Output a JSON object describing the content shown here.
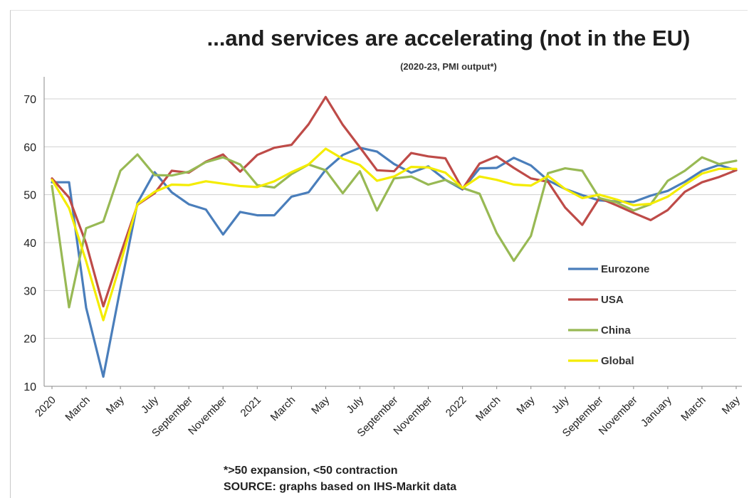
{
  "header": {
    "title": "...and services are accelerating (not in the EU)",
    "subtitle": "(2020-23, PMI output*)"
  },
  "footer": {
    "note": "*>50 expansion, <50 contraction",
    "source": "SOURCE: graphs based on IHS-Markit data"
  },
  "chart_data": {
    "type": "line",
    "title": "...and services are accelerating (not in the EU)",
    "subtitle": "(2020-23, PMI output*)",
    "xlabel": "",
    "ylabel": "",
    "ylim": [
      10,
      75
    ],
    "yticks": [
      10,
      20,
      30,
      40,
      50,
      60,
      70
    ],
    "grid": true,
    "legend_position": "right-inside",
    "x": [
      "2020-01",
      "2020-02",
      "2020-03",
      "2020-04",
      "2020-05",
      "2020-06",
      "2020-07",
      "2020-08",
      "2020-09",
      "2020-10",
      "2020-11",
      "2020-12",
      "2021-01",
      "2021-02",
      "2021-03",
      "2021-04",
      "2021-05",
      "2021-06",
      "2021-07",
      "2021-08",
      "2021-09",
      "2021-10",
      "2021-11",
      "2021-12",
      "2022-01",
      "2022-02",
      "2022-03",
      "2022-04",
      "2022-05",
      "2022-06",
      "2022-07",
      "2022-08",
      "2022-09",
      "2022-10",
      "2022-11",
      "2022-12",
      "2023-01",
      "2023-02",
      "2023-03",
      "2023-04",
      "2023-05"
    ],
    "x_tick_labels": [
      "2020",
      "March",
      "May",
      "July",
      "September",
      "November",
      "2021",
      "March",
      "May",
      "July",
      "September",
      "November",
      "2022",
      "March",
      "May",
      "July",
      "September",
      "November",
      "January",
      "March",
      "May"
    ],
    "series": [
      {
        "name": "Eurozone",
        "color": "#4a7ebb",
        "values": [
          52.6,
          52.6,
          26.4,
          12.0,
          30.5,
          48.3,
          54.7,
          50.5,
          48.0,
          46.9,
          41.7,
          46.4,
          45.7,
          45.7,
          49.6,
          50.5,
          55.2,
          58.3,
          59.8,
          59.0,
          56.4,
          54.6,
          55.9,
          53.1,
          51.1,
          55.5,
          55.6,
          57.7,
          56.1,
          53.0,
          51.2,
          49.9,
          48.8,
          48.6,
          48.5,
          49.8,
          50.8,
          52.7,
          55.0,
          56.2,
          55.1
        ]
      },
      {
        "name": "USA",
        "color": "#be4b48",
        "values": [
          53.4,
          49.4,
          39.8,
          26.7,
          37.5,
          47.9,
          50.3,
          55.0,
          54.6,
          56.9,
          58.4,
          54.8,
          58.3,
          59.8,
          60.4,
          64.7,
          70.4,
          64.6,
          59.9,
          55.1,
          54.9,
          58.7,
          58.0,
          57.6,
          51.2,
          56.5,
          58.0,
          55.6,
          53.4,
          52.7,
          47.3,
          43.7,
          49.3,
          47.8,
          46.2,
          44.7,
          46.8,
          50.6,
          52.6,
          53.7,
          55.1
        ]
      },
      {
        "name": "China",
        "color": "#98b954",
        "values": [
          51.8,
          26.5,
          43.0,
          44.4,
          55.0,
          58.4,
          54.1,
          54.0,
          54.8,
          56.8,
          57.8,
          56.3,
          52.0,
          51.5,
          54.3,
          56.3,
          55.1,
          50.3,
          54.9,
          46.7,
          53.4,
          53.8,
          52.1,
          53.1,
          51.4,
          50.2,
          42.0,
          36.2,
          41.4,
          54.5,
          55.5,
          55.0,
          49.3,
          48.4,
          46.7,
          48.0,
          52.9,
          55.0,
          57.8,
          56.4,
          57.1
        ]
      },
      {
        "name": "Global",
        "color": "#f4ec00",
        "values": [
          53.1,
          47.2,
          36.1,
          23.8,
          35.6,
          48.0,
          50.6,
          52.1,
          52.0,
          52.8,
          52.3,
          51.8,
          51.6,
          52.8,
          54.7,
          56.3,
          59.6,
          57.5,
          56.2,
          52.9,
          53.8,
          55.8,
          55.7,
          54.6,
          51.4,
          53.8,
          53.1,
          52.1,
          51.9,
          53.9,
          51.2,
          49.3,
          50.0,
          49.0,
          47.8,
          48.1,
          49.6,
          52.1,
          54.4,
          55.4,
          55.4
        ]
      }
    ]
  }
}
